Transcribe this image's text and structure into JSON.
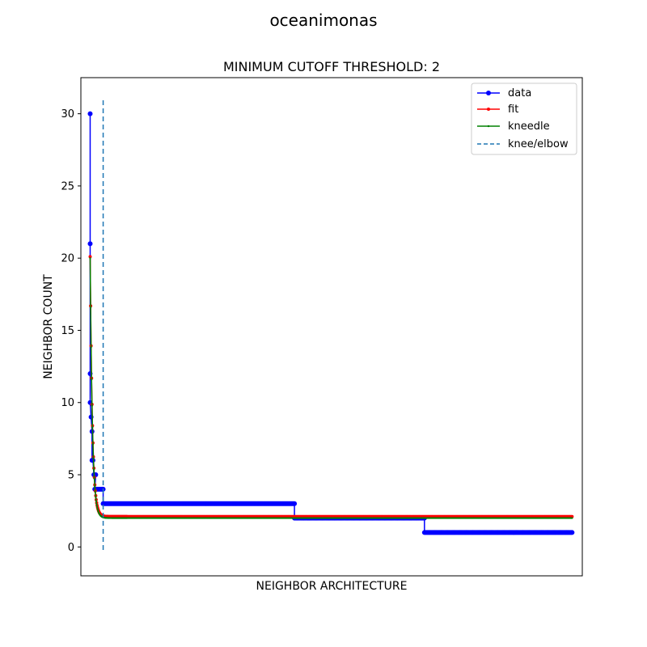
{
  "figure": {
    "suptitle": "oceanimonas"
  },
  "chart_data": {
    "type": "line",
    "title": "MINIMUM CUTOFF THRESHOLD: 2",
    "xlabel": "NEIGHBOR ARCHITECTURE",
    "ylabel": "NEIGHBOR COUNT",
    "xlim": [
      -10,
      530
    ],
    "ylim": [
      -2,
      32.5
    ],
    "xticks_shown": false,
    "yticks": [
      0,
      5,
      10,
      15,
      20,
      25,
      30
    ],
    "ytick_labels": [
      "0",
      "5",
      "10",
      "15",
      "20",
      "25",
      "30"
    ],
    "grid": false,
    "legend_position": "top-right",
    "legend": [
      "data",
      "fit",
      "kneedle",
      "knee/elbow"
    ],
    "series": [
      {
        "name": "data",
        "color": "#0000ff",
        "marker": "circle",
        "steps": [
          {
            "from": 0,
            "to": 0,
            "value": 30
          },
          {
            "from": 0,
            "to": 0,
            "value": 21
          },
          {
            "from": 0,
            "to": 0,
            "value": 12
          },
          {
            "from": 0,
            "to": 0,
            "value": 10
          },
          {
            "from": 1,
            "to": 1,
            "value": 9
          },
          {
            "from": 2,
            "to": 2,
            "value": 8
          },
          {
            "from": 2,
            "to": 3,
            "value": 6
          },
          {
            "from": 4,
            "to": 6,
            "value": 5
          },
          {
            "from": 5,
            "to": 14,
            "value": 4
          },
          {
            "from": 14,
            "to": 220,
            "value": 3
          },
          {
            "from": 220,
            "to": 360,
            "value": 2
          },
          {
            "from": 360,
            "to": 519,
            "value": 1
          }
        ]
      },
      {
        "name": "fit",
        "color": "#ff0000",
        "marker": "small-circle",
        "model": {
          "asymptote": 2.1,
          "amplitude": 18.0,
          "decay": 0.42,
          "x_start": 0,
          "x_end": 519
        }
      },
      {
        "name": "kneedle",
        "color": "#008000",
        "marker": "point",
        "model": {
          "asymptote": 2.0,
          "amplitude": 18.0,
          "decay": 0.42,
          "x_start": 0,
          "x_end": 519
        }
      }
    ],
    "knee": {
      "name": "knee/elbow",
      "x": 14,
      "color": "#1f77b4",
      "linestyle": "dashed"
    }
  }
}
